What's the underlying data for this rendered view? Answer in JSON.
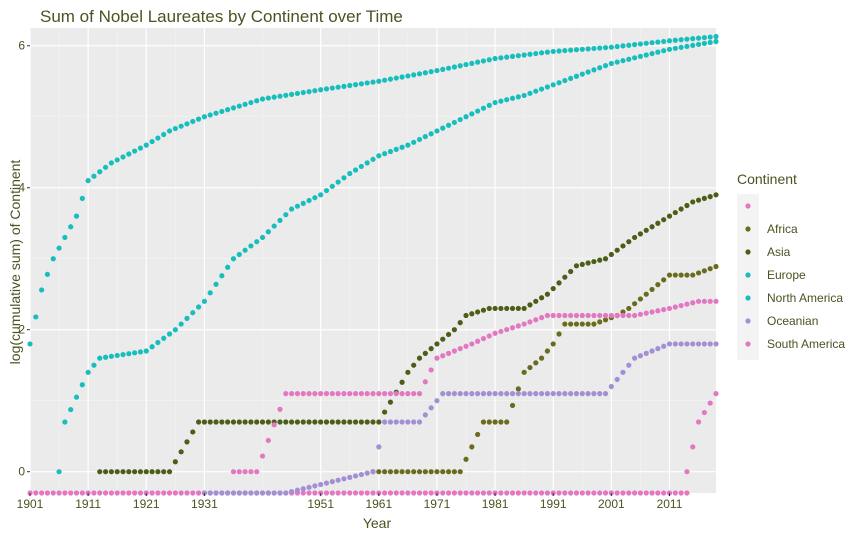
{
  "chart_data": {
    "type": "scatter",
    "title": "Sum of Nobel Laureates by Continent over Time",
    "xlabel": "Year",
    "ylabel": "log(cumulative sum) of Continent",
    "xlim": [
      1901,
      2019
    ],
    "ylim": [
      -0.3,
      6.25
    ],
    "x_ticks": [
      1901,
      1911,
      1921,
      1931,
      1951,
      1961,
      1971,
      1981,
      1991,
      2001,
      2011
    ],
    "x_tick_labels": [
      "1901",
      "1911",
      "1921",
      "1931",
      "1951",
      "1961",
      "1971",
      "1981",
      "1991",
      "2001",
      "2011"
    ],
    "y_ticks": [
      0,
      2,
      4,
      6
    ],
    "y_tick_labels": [
      "0",
      "2",
      "4",
      "6"
    ],
    "grid": true,
    "legend": {
      "title": "Continent",
      "placement": "right",
      "entries": [
        {
          "name": "",
          "color": "#e377c2"
        },
        {
          "name": "Africa",
          "color": "#6b6b1e"
        },
        {
          "name": "Asia",
          "color": "#4b5d16"
        },
        {
          "name": "Europe",
          "color": "#17bebb"
        },
        {
          "name": "North America",
          "color": "#17bebb"
        },
        {
          "name": "Oceanian",
          "color": "#a38fd3"
        },
        {
          "name": "South America",
          "color": "#e377c2"
        }
      ]
    },
    "series": [
      {
        "name": "",
        "color": "#e377c2",
        "points": [
          [
            1901,
            -0.3
          ],
          [
            1950,
            -0.3
          ],
          [
            1960,
            -0.3
          ],
          [
            1980,
            -0.3
          ],
          [
            2000,
            -0.3
          ],
          [
            2014,
            -0.3
          ]
        ]
      },
      {
        "name": "Europe",
        "color": "#17bebb",
        "points": [
          [
            1901,
            1.8
          ],
          [
            1903,
            2.56
          ],
          [
            1905,
            3.0
          ],
          [
            1907,
            3.3
          ],
          [
            1909,
            3.6
          ],
          [
            1911,
            4.1
          ],
          [
            1915,
            4.35
          ],
          [
            1921,
            4.6
          ],
          [
            1925,
            4.8
          ],
          [
            1931,
            5.0
          ],
          [
            1941,
            5.25
          ],
          [
            1951,
            5.38
          ],
          [
            1961,
            5.5
          ],
          [
            1971,
            5.65
          ],
          [
            1981,
            5.82
          ],
          [
            1991,
            5.92
          ],
          [
            2001,
            5.98
          ],
          [
            2011,
            6.07
          ],
          [
            2019,
            6.13
          ]
        ]
      },
      {
        "name": "North America",
        "color": "#17bebb",
        "points": [
          [
            1906,
            0.0
          ],
          [
            1907,
            0.7
          ],
          [
            1911,
            1.4
          ],
          [
            1913,
            1.6
          ],
          [
            1921,
            1.7
          ],
          [
            1926,
            2.0
          ],
          [
            1931,
            2.4
          ],
          [
            1936,
            3.0
          ],
          [
            1941,
            3.3
          ],
          [
            1946,
            3.7
          ],
          [
            1951,
            3.9
          ],
          [
            1956,
            4.2
          ],
          [
            1961,
            4.45
          ],
          [
            1966,
            4.6
          ],
          [
            1971,
            4.8
          ],
          [
            1976,
            5.0
          ],
          [
            1981,
            5.2
          ],
          [
            1986,
            5.3
          ],
          [
            1991,
            5.45
          ],
          [
            1996,
            5.6
          ],
          [
            2001,
            5.75
          ],
          [
            2006,
            5.85
          ],
          [
            2011,
            5.95
          ],
          [
            2019,
            6.06
          ]
        ]
      },
      {
        "name": "Africa",
        "color": "#6b6b1e",
        "points": [
          [
            1960,
            0.0
          ],
          [
            1965,
            0.0
          ],
          [
            1970,
            0.0
          ],
          [
            1975,
            0.0
          ],
          [
            1979,
            0.7
          ],
          [
            1983,
            0.7
          ],
          [
            1986,
            1.4
          ],
          [
            1989,
            1.6
          ],
          [
            1991,
            1.8
          ],
          [
            1993,
            2.08
          ],
          [
            1998,
            2.08
          ],
          [
            2002,
            2.2
          ],
          [
            2004,
            2.3
          ],
          [
            2007,
            2.5
          ],
          [
            2011,
            2.77
          ],
          [
            2015,
            2.77
          ],
          [
            2019,
            2.89
          ]
        ]
      },
      {
        "name": "Asia",
        "color": "#4b5d16",
        "points": [
          [
            1913,
            0.0
          ],
          [
            1920,
            0.0
          ],
          [
            1925,
            0.0
          ],
          [
            1930,
            0.7
          ],
          [
            1940,
            0.7
          ],
          [
            1951,
            0.7
          ],
          [
            1961,
            0.7
          ],
          [
            1966,
            1.4
          ],
          [
            1968,
            1.6
          ],
          [
            1971,
            1.8
          ],
          [
            1974,
            2.0
          ],
          [
            1976,
            2.2
          ],
          [
            1980,
            2.3
          ],
          [
            1986,
            2.3
          ],
          [
            1990,
            2.5
          ],
          [
            1995,
            2.9
          ],
          [
            2000,
            3.0
          ],
          [
            2005,
            3.3
          ],
          [
            2011,
            3.6
          ],
          [
            2015,
            3.8
          ],
          [
            2019,
            3.9
          ]
        ]
      },
      {
        "name": "Oceanian",
        "color": "#a38fd3",
        "points": [
          [
            1931,
            -0.3
          ],
          [
            1945,
            -0.3
          ],
          [
            1960,
            0.0
          ],
          [
            1962,
            0.7
          ],
          [
            1968,
            0.7
          ],
          [
            1972,
            1.1
          ],
          [
            1980,
            1.1
          ],
          [
            1990,
            1.1
          ],
          [
            2000,
            1.1
          ],
          [
            2005,
            1.6
          ],
          [
            2011,
            1.8
          ],
          [
            2019,
            1.8
          ]
        ]
      },
      {
        "name": "South America",
        "color": "#e377c2",
        "points": [
          [
            1936,
            0.0
          ],
          [
            1940,
            0.0
          ],
          [
            1945,
            1.1
          ],
          [
            1950,
            1.1
          ],
          [
            1955,
            1.1
          ],
          [
            1961,
            1.1
          ],
          [
            1968,
            1.1
          ],
          [
            1971,
            1.6
          ],
          [
            1977,
            1.8
          ],
          [
            1981,
            1.95
          ],
          [
            1986,
            2.08
          ],
          [
            1990,
            2.2
          ],
          [
            1995,
            2.2
          ],
          [
            2000,
            2.2
          ],
          [
            2005,
            2.2
          ],
          [
            2011,
            2.3
          ],
          [
            2016,
            2.4
          ],
          [
            2019,
            2.4
          ],
          [
            2019,
            1.1
          ],
          [
            2016,
            0.7
          ],
          [
            2014,
            0.0
          ]
        ]
      }
    ]
  }
}
